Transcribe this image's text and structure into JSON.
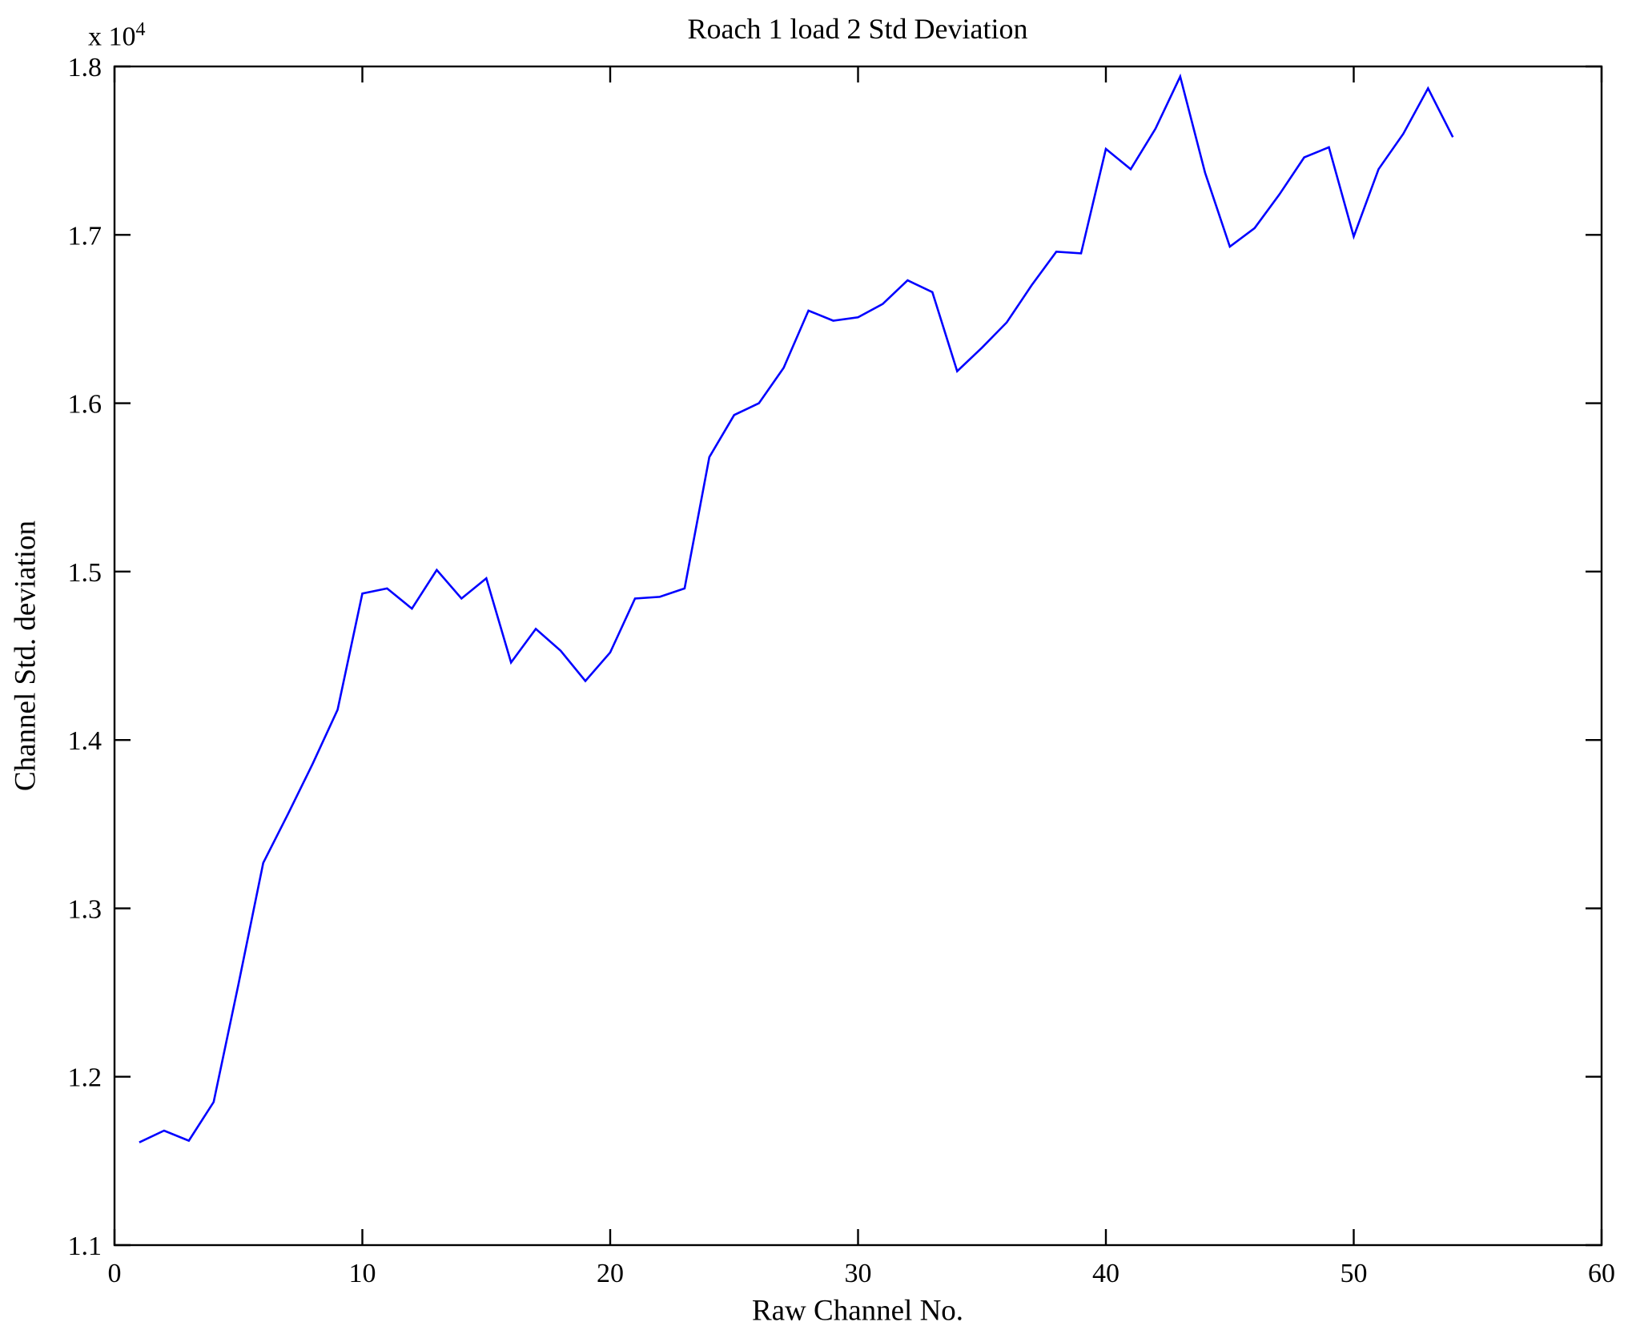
{
  "chart_data": {
    "type": "line",
    "title": "Roach 1 load 2 Std Deviation",
    "xlabel": "Raw Channel No.",
    "ylabel": "Channel Std. deviation",
    "y_multiplier_base": "x 10",
    "y_multiplier_exp": "4",
    "xlim": [
      0,
      60
    ],
    "ylim": [
      1.1,
      1.8
    ],
    "xticks": [
      0,
      10,
      20,
      30,
      40,
      50,
      60
    ],
    "yticks": [
      1.1,
      1.2,
      1.3,
      1.4,
      1.5,
      1.6,
      1.7,
      1.8
    ],
    "grid": false,
    "legend": null,
    "line_color": "#0000FF",
    "axis_color": "#000000",
    "x": [
      1,
      2,
      3,
      4,
      5,
      6,
      7,
      8,
      9,
      10,
      11,
      12,
      13,
      14,
      15,
      16,
      17,
      18,
      19,
      20,
      21,
      22,
      23,
      24,
      25,
      26,
      27,
      28,
      29,
      30,
      31,
      32,
      33,
      34,
      35,
      36,
      37,
      38,
      39,
      40,
      41,
      42,
      43,
      44,
      45,
      46,
      47,
      48,
      49,
      50,
      51,
      52,
      53,
      54
    ],
    "values": [
      1.161,
      1.168,
      1.162,
      1.185,
      1.255,
      1.327,
      1.356,
      1.386,
      1.418,
      1.487,
      1.49,
      1.478,
      1.501,
      1.484,
      1.496,
      1.446,
      1.466,
      1.453,
      1.435,
      1.452,
      1.484,
      1.485,
      1.49,
      1.568,
      1.593,
      1.6,
      1.621,
      1.655,
      1.649,
      1.651,
      1.659,
      1.673,
      1.666,
      1.619,
      1.633,
      1.648,
      1.67,
      1.69,
      1.689,
      1.751,
      1.739,
      1.763,
      1.794,
      1.737,
      1.693,
      1.704,
      1.724,
      1.746,
      1.752,
      1.699,
      1.739,
      1.76,
      1.787,
      1.758
    ]
  }
}
